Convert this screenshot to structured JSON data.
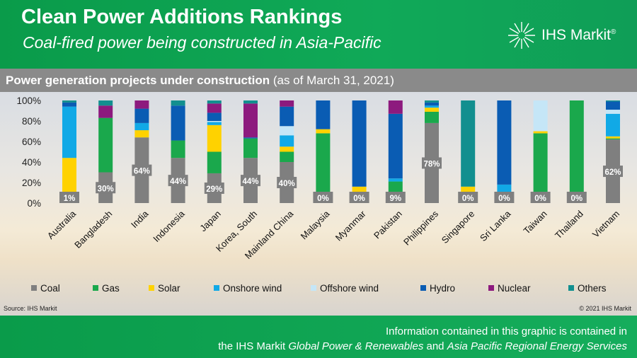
{
  "header": {
    "title": "Clean Power Additions Rankings",
    "subtitle": "Coal-fired power being constructed in Asia-Pacific",
    "logo_text": "IHS Markit",
    "logo_mark": "®"
  },
  "section": {
    "title_bold": "Power generation projects under construction",
    "title_rest": " (as of March 31, 2021)"
  },
  "source": "Source: IHS Markit",
  "copyright": "© 2021 IHS Markit",
  "footer": {
    "line1": "Information contained in this graphic is contained in",
    "line2_a": "the IHS Markit ",
    "line2_b": "Global Power & Renewables",
    "line2_c": " and ",
    "line2_d": "Asia Pacific Regional Energy Services"
  },
  "colors": {
    "Coal": "#7f7f7f",
    "Gas": "#1aa84c",
    "Solar": "#ffd200",
    "Onshore wind": "#11a9e6",
    "Offshore wind": "#c5e6f7",
    "Hydro": "#0a5cb3",
    "Nuclear": "#8d1a7e",
    "Others": "#128f8f"
  },
  "chart_data": {
    "type": "bar",
    "stacked": true,
    "categories": [
      "Australia",
      "Bangladesh",
      "India",
      "Indonesia",
      "Japan",
      "Korea, South",
      "Mainland China",
      "Malaysia",
      "Myanmar",
      "Pakistan",
      "Philippines",
      "Singapore",
      "Sri Lanka",
      "Taiwan",
      "Thailand",
      "Vietnam"
    ],
    "series": [
      {
        "name": "Coal",
        "values": [
          1,
          30,
          64,
          44,
          29,
          44,
          40,
          0,
          0,
          9,
          78,
          0,
          0,
          0,
          0,
          62
        ]
      },
      {
        "name": "Gas",
        "values": [
          0,
          53,
          0,
          17,
          21,
          19,
          10,
          68,
          4,
          12,
          11,
          0,
          0,
          68,
          100,
          1
        ]
      },
      {
        "name": "Solar",
        "values": [
          43,
          0,
          7,
          0,
          26,
          0,
          5,
          4,
          12,
          0,
          4,
          16,
          0,
          2,
          0,
          2
        ]
      },
      {
        "name": "Onshore wind",
        "values": [
          50,
          0,
          7,
          0,
          3,
          0,
          11,
          0,
          0,
          3,
          2,
          0,
          18,
          0,
          0,
          22
        ]
      },
      {
        "name": "Offshore wind",
        "values": [
          0,
          0,
          0,
          0,
          1,
          0,
          9,
          0,
          0,
          0,
          0,
          0,
          0,
          30,
          0,
          4
        ]
      },
      {
        "name": "Hydro",
        "values": [
          4,
          0,
          14,
          34,
          8,
          1,
          19,
          28,
          84,
          63,
          3,
          0,
          82,
          0,
          0,
          8
        ]
      },
      {
        "name": "Nuclear",
        "values": [
          0,
          12,
          8,
          0,
          9,
          33,
          6,
          0,
          0,
          13,
          0,
          0,
          0,
          0,
          0,
          0
        ]
      },
      {
        "name": "Others",
        "values": [
          2,
          5,
          0,
          5,
          3,
          3,
          0,
          0,
          0,
          0,
          2,
          84,
          0,
          0,
          0,
          1
        ]
      }
    ],
    "data_labels": [
      "1%",
      "30%",
      "64%",
      "44%",
      "29%",
      "44%",
      "40%",
      "0%",
      "0%",
      "9%",
      "78%",
      "0%",
      "0%",
      "0%",
      "0%",
      "62%"
    ],
    "yticks": [
      "0%",
      "20%",
      "40%",
      "60%",
      "80%",
      "100%"
    ],
    "ylim": [
      0,
      100
    ],
    "legend_position": "bottom"
  }
}
